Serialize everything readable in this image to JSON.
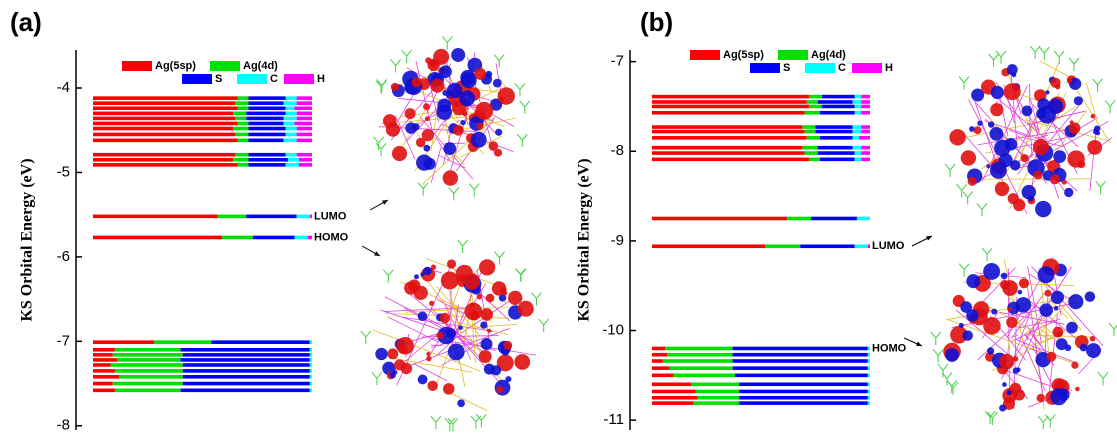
{
  "chart_data": [
    {
      "type": "energy-level",
      "title": "(a)",
      "ylabel": "KS Orbital Energy (eV)",
      "ylim": [
        -8.05,
        -3.55
      ],
      "yticks": [
        -4,
        -5,
        -6,
        -7,
        -8
      ],
      "y": [
        -4.12,
        -4.18,
        -4.24,
        -4.3,
        -4.36,
        -4.42,
        -4.48,
        -4.55,
        -4.62,
        -4.79,
        -4.85,
        -4.91,
        -5.52,
        -5.77,
        -7.01,
        -7.1,
        -7.16,
        -7.22,
        -7.28,
        -7.35,
        -7.42,
        -7.5,
        -7.58
      ],
      "level_labels": [
        null,
        null,
        null,
        null,
        null,
        null,
        null,
        null,
        null,
        null,
        null,
        null,
        "LUMO",
        "HOMO",
        null,
        null,
        null,
        null,
        null,
        null,
        null,
        null,
        null
      ],
      "series": [
        {
          "name": "Ag(5sp)",
          "color": "#ff0000",
          "values": [
            66,
            65,
            66,
            64,
            65,
            66,
            64,
            65,
            66,
            65,
            64,
            66,
            57,
            59,
            28,
            10,
            9,
            11,
            8,
            10,
            12,
            9,
            10
          ]
        },
        {
          "name": "Ag(4d)",
          "color": "#00e000",
          "values": [
            5,
            6,
            5,
            6,
            5,
            5,
            7,
            6,
            5,
            6,
            7,
            5,
            13,
            14,
            26,
            30,
            32,
            29,
            33,
            31,
            29,
            32,
            30
          ]
        },
        {
          "name": "S",
          "color": "#0000ff",
          "values": [
            17,
            16,
            17,
            18,
            17,
            16,
            17,
            17,
            16,
            17,
            18,
            17,
            23,
            19,
            45,
            59,
            58,
            59,
            58,
            58,
            58,
            58,
            59
          ]
        },
        {
          "name": "C",
          "color": "#00ffff",
          "values": [
            5,
            6,
            4,
            5,
            6,
            5,
            5,
            5,
            6,
            5,
            5,
            6,
            6,
            6,
            1,
            1,
            1,
            1,
            1,
            1,
            1,
            1,
            1
          ]
        },
        {
          "name": "H",
          "color": "#ff00ff",
          "values": [
            7,
            7,
            8,
            7,
            7,
            8,
            7,
            7,
            7,
            7,
            6,
            6,
            1,
            2,
            0,
            0,
            0,
            0,
            0,
            0,
            0,
            0,
            0
          ]
        }
      ]
    },
    {
      "type": "energy-level",
      "title": "(b)",
      "ylabel": "KS Orbital Energy (eV)",
      "ylim": [
        -11.11,
        -6.87
      ],
      "yticks": [
        -7,
        -8,
        -9,
        -10,
        -11
      ],
      "y": [
        -7.39,
        -7.45,
        -7.5,
        -7.57,
        -7.73,
        -7.78,
        -7.85,
        -7.96,
        -8.02,
        -8.09,
        -8.75,
        -9.06,
        -10.2,
        -10.27,
        -10.34,
        -10.42,
        -10.5,
        -10.6,
        -10.68,
        -10.75,
        -10.81
      ],
      "level_labels": [
        null,
        null,
        null,
        null,
        null,
        null,
        null,
        null,
        null,
        null,
        null,
        "LUMO",
        "HOMO",
        null,
        null,
        null,
        null,
        null,
        null,
        null,
        null
      ],
      "series": [
        {
          "name": "Ag(5sp)",
          "color": "#ff0000",
          "values": [
            72,
            71,
            72,
            70,
            69,
            70,
            71,
            69,
            70,
            72,
            62,
            52,
            6,
            7,
            5,
            8,
            10,
            18,
            20,
            21,
            19
          ]
        },
        {
          "name": "Ag(4d)",
          "color": "#00e000",
          "values": [
            6,
            5,
            6,
            7,
            6,
            5,
            6,
            7,
            6,
            5,
            11,
            16,
            31,
            30,
            32,
            29,
            28,
            22,
            20,
            19,
            21
          ]
        },
        {
          "name": "S",
          "color": "#0000ff",
          "values": [
            15,
            16,
            15,
            16,
            17,
            17,
            15,
            16,
            17,
            16,
            21,
            25,
            62,
            62,
            62,
            62,
            61,
            59,
            59,
            59,
            59
          ]
        },
        {
          "name": "C",
          "color": "#00ffff",
          "values": [
            3,
            4,
            3,
            3,
            4,
            4,
            3,
            4,
            3,
            3,
            6,
            6,
            1,
            1,
            1,
            1,
            1,
            1,
            1,
            1,
            1
          ]
        },
        {
          "name": "H",
          "color": "#ff00ff",
          "values": [
            4,
            4,
            4,
            4,
            4,
            4,
            5,
            4,
            4,
            4,
            0,
            1,
            0,
            0,
            0,
            0,
            0,
            0,
            0,
            0,
            0
          ]
        }
      ]
    }
  ]
}
